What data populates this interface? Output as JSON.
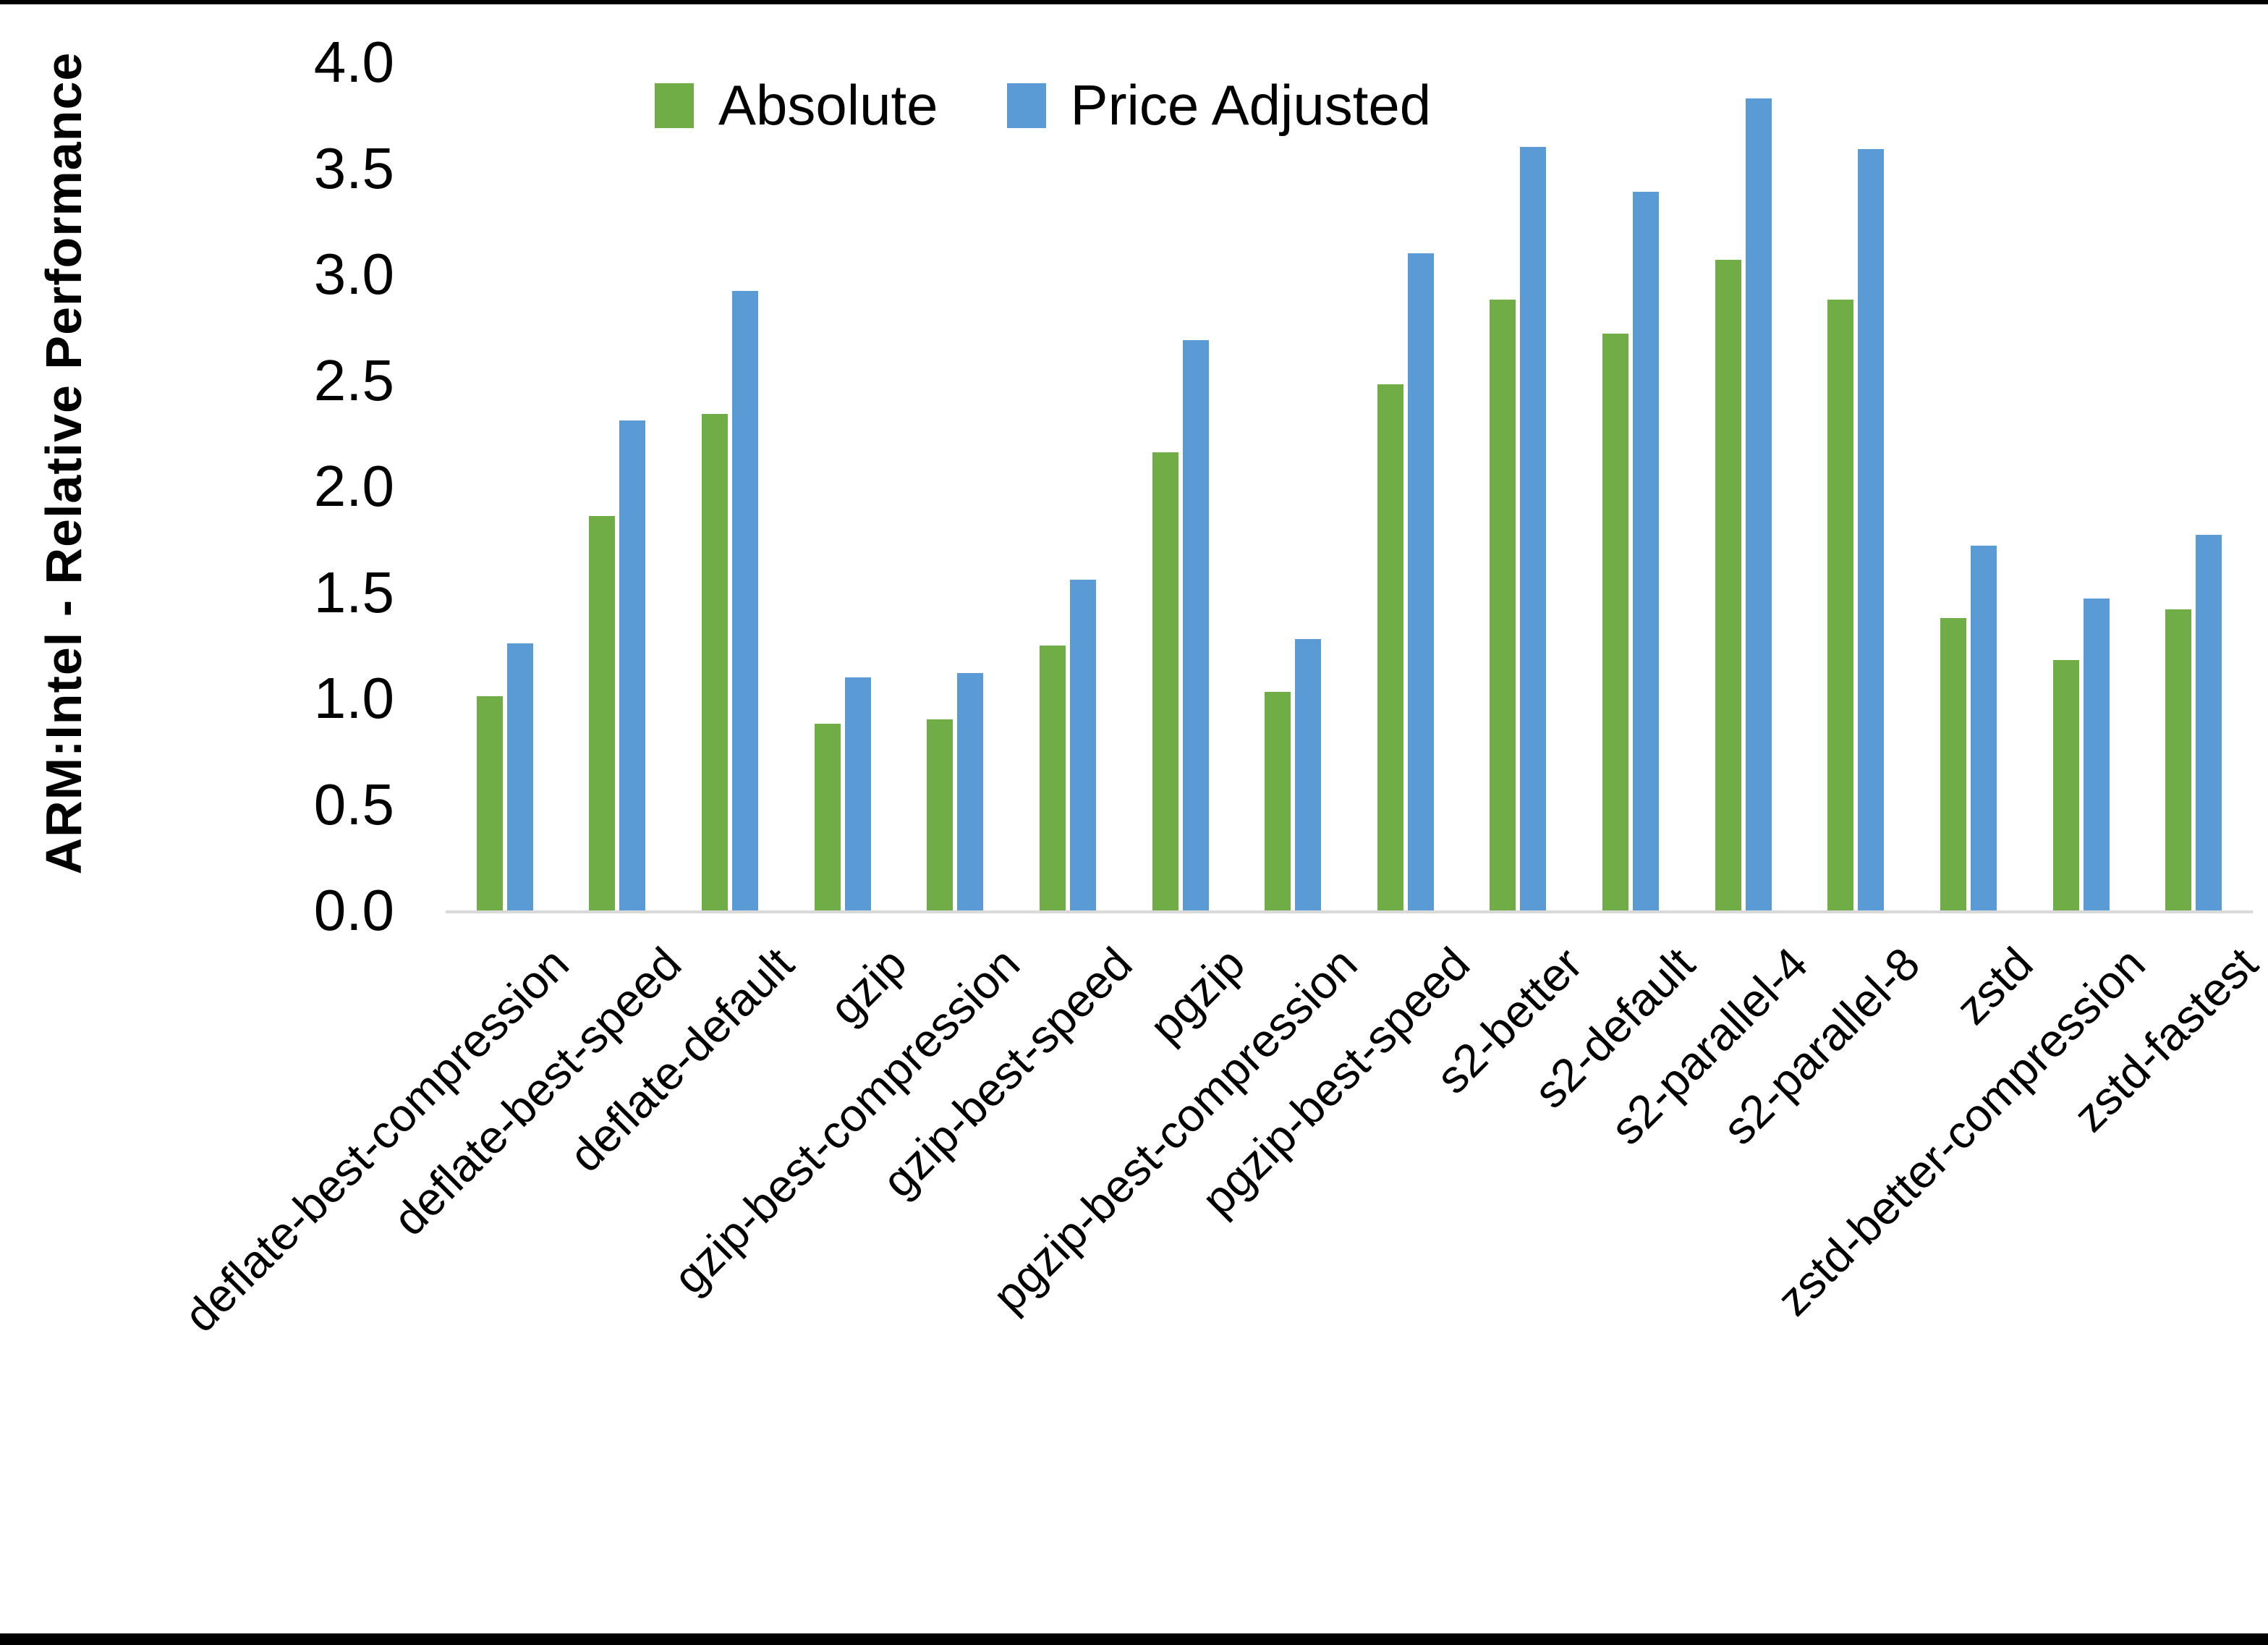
{
  "figure": {
    "y_axis_title": "ARM:Intel - Relative Performance",
    "background_color": "#ffffff",
    "border_color": "#000000",
    "axis_line_color": "#d9d9d9"
  },
  "chart_data": {
    "type": "bar",
    "title": "",
    "xlabel": "",
    "ylabel": "ARM:Intel - Relative Performance",
    "ylim": [
      0,
      4
    ],
    "yticks": [
      "4.0",
      "3.5",
      "3.0",
      "2.5",
      "2.0",
      "1.5",
      "1.0",
      "0.5",
      "0.0"
    ],
    "grid": false,
    "legend_position": "top-center",
    "categories": [
      "deflate-best-compression",
      "deflate-best-speed",
      "deflate-default",
      "gzip",
      "gzip-best-compression",
      "gzip-best-speed",
      "pgzip",
      "pgzip-best-compression",
      "pgzip-best-speed",
      "s2-better",
      "s2-default",
      "s2-parallel-4",
      "s2-parallel-8",
      "zstd",
      "zstd-better-compression",
      "zstd-fastest"
    ],
    "series": [
      {
        "name": "Absolute",
        "color": "#70AD47",
        "values": [
          1.01,
          1.86,
          2.34,
          0.88,
          0.9,
          1.25,
          2.16,
          1.03,
          2.48,
          2.88,
          2.72,
          3.07,
          2.88,
          1.38,
          1.18,
          1.42
        ]
      },
      {
        "name": "Price Adjusted",
        "color": "#5B9BD5",
        "values": [
          1.26,
          2.31,
          2.92,
          1.1,
          1.12,
          1.56,
          2.69,
          1.28,
          3.1,
          3.6,
          3.39,
          3.83,
          3.59,
          1.72,
          1.47,
          1.77
        ]
      }
    ]
  }
}
